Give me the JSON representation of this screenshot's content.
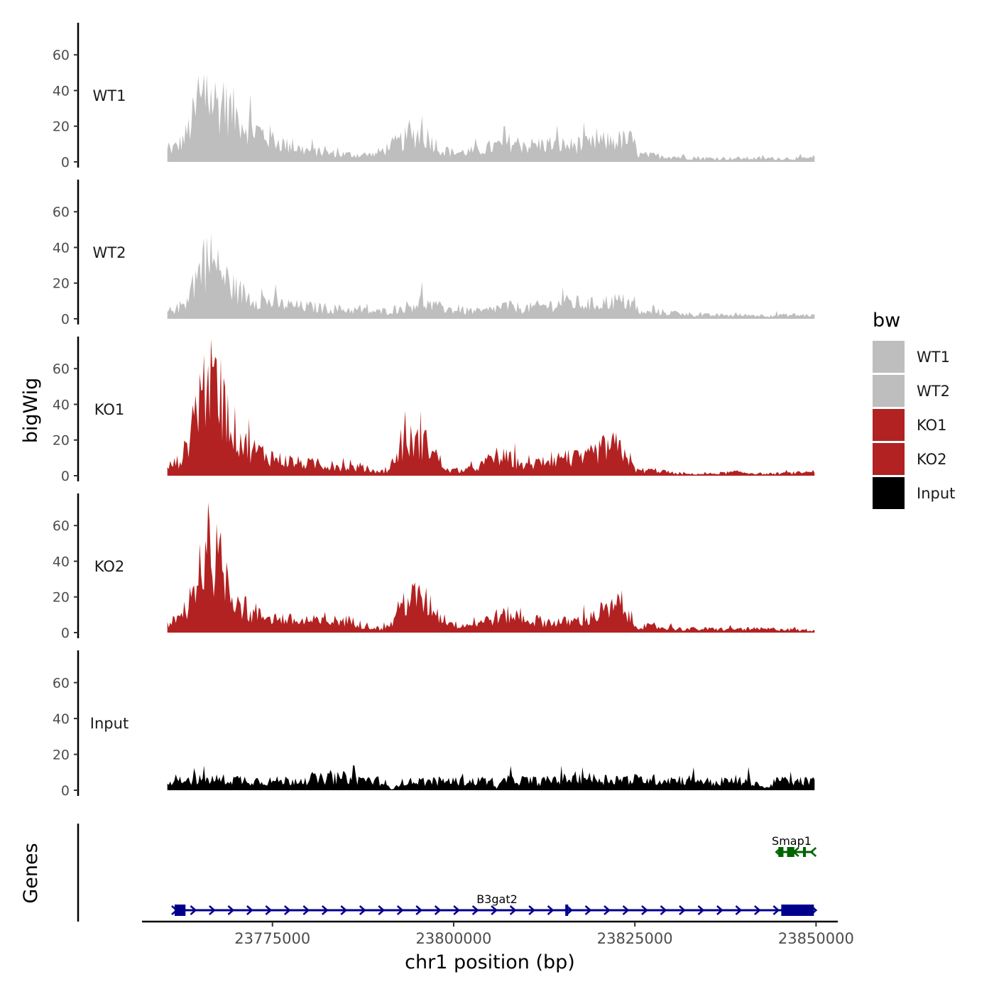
{
  "chart_data": {
    "type": "area",
    "title": "",
    "y_axis_label": "bigWig",
    "gene_axis_label": "Genes",
    "x_axis_label": "chr1 position (bp)",
    "x_range": [
      23757000,
      23853000
    ],
    "x_ticks": [
      23775000,
      23800000,
      23825000,
      23850000
    ],
    "x_tick_labels": [
      "23775000",
      "23800000",
      "23825000",
      "23850000"
    ],
    "data_x_range": [
      23760500,
      23849800
    ],
    "y_range": [
      0,
      78
    ],
    "y_ticks": [
      0,
      20,
      40,
      60
    ],
    "y_tick_labels": [
      "0",
      "20",
      "40",
      "60"
    ],
    "legend": {
      "title": "bw",
      "position": "right",
      "entries": [
        {
          "label": "WT1",
          "color": "#bebebe"
        },
        {
          "label": "WT2",
          "color": "#bebebe"
        },
        {
          "label": "KO1",
          "color": "#b22222"
        },
        {
          "label": "KO2",
          "color": "#b22222"
        },
        {
          "label": "Input",
          "color": "#000000"
        }
      ]
    },
    "series": [
      {
        "name": "WT1",
        "color": "#bebebe",
        "profile": [
          [
            23760500,
            6
          ],
          [
            23762000,
            9
          ],
          [
            23763000,
            14
          ],
          [
            23764000,
            24
          ],
          [
            23765000,
            32
          ],
          [
            23766000,
            36
          ],
          [
            23767000,
            34
          ],
          [
            23768000,
            31
          ],
          [
            23769000,
            30
          ],
          [
            23770000,
            26
          ],
          [
            23771000,
            22
          ],
          [
            23772000,
            19
          ],
          [
            23773000,
            17
          ],
          [
            23775000,
            13
          ],
          [
            23777000,
            9
          ],
          [
            23779000,
            7
          ],
          [
            23782000,
            5
          ],
          [
            23786000,
            4
          ],
          [
            23789000,
            4
          ],
          [
            23790000,
            6
          ],
          [
            23792000,
            10
          ],
          [
            23794000,
            14
          ],
          [
            23795500,
            16
          ],
          [
            23797000,
            12
          ],
          [
            23798500,
            6
          ],
          [
            23800000,
            5
          ],
          [
            23803000,
            6
          ],
          [
            23806000,
            9
          ],
          [
            23808000,
            11
          ],
          [
            23810000,
            9
          ],
          [
            23813000,
            10
          ],
          [
            23816000,
            9
          ],
          [
            23819000,
            10
          ],
          [
            23822000,
            12
          ],
          [
            23824500,
            12
          ],
          [
            23825500,
            4
          ],
          [
            23830000,
            3
          ],
          [
            23835000,
            2
          ],
          [
            23840000,
            2
          ],
          [
            23845000,
            2
          ],
          [
            23849800,
            2
          ]
        ],
        "peaks": [
          [
            23764800,
            48
          ],
          [
            23765600,
            49
          ],
          [
            23768200,
            45
          ],
          [
            23795700,
            26
          ],
          [
            23807000,
            20
          ]
        ]
      },
      {
        "name": "WT2",
        "color": "#bebebe",
        "profile": [
          [
            23760500,
            4
          ],
          [
            23762000,
            6
          ],
          [
            23763000,
            9
          ],
          [
            23764000,
            20
          ],
          [
            23765000,
            27
          ],
          [
            23766000,
            32
          ],
          [
            23767000,
            29
          ],
          [
            23768000,
            25
          ],
          [
            23769000,
            20
          ],
          [
            23770000,
            16
          ],
          [
            23772000,
            12
          ],
          [
            23774000,
            10
          ],
          [
            23776000,
            8
          ],
          [
            23779000,
            7
          ],
          [
            23782000,
            6
          ],
          [
            23786000,
            5
          ],
          [
            23789000,
            4
          ],
          [
            23790000,
            4
          ],
          [
            23793000,
            6
          ],
          [
            23795500,
            10
          ],
          [
            23797000,
            7
          ],
          [
            23800000,
            5
          ],
          [
            23804000,
            4
          ],
          [
            23807000,
            7
          ],
          [
            23810000,
            6
          ],
          [
            23814000,
            8
          ],
          [
            23816000,
            9
          ],
          [
            23819000,
            8
          ],
          [
            23822000,
            10
          ],
          [
            23824500,
            9
          ],
          [
            23825500,
            3
          ],
          [
            23828000,
            4
          ],
          [
            23831000,
            3
          ],
          [
            23835000,
            2
          ],
          [
            23838000,
            2
          ],
          [
            23840000,
            2
          ],
          [
            23845000,
            2
          ],
          [
            23849800,
            2
          ]
        ],
        "peaks": [
          [
            23766500,
            48
          ],
          [
            23765500,
            45
          ],
          [
            23795700,
            21
          ],
          [
            23815000,
            18
          ]
        ]
      },
      {
        "name": "KO1",
        "color": "#b22222",
        "profile": [
          [
            23760500,
            5
          ],
          [
            23762000,
            8
          ],
          [
            23763000,
            14
          ],
          [
            23764000,
            32
          ],
          [
            23765000,
            46
          ],
          [
            23766000,
            52
          ],
          [
            23767000,
            48
          ],
          [
            23768000,
            40
          ],
          [
            23769000,
            32
          ],
          [
            23770000,
            24
          ],
          [
            23771000,
            18
          ],
          [
            23772000,
            15
          ],
          [
            23774000,
            12
          ],
          [
            23776000,
            9
          ],
          [
            23779000,
            7
          ],
          [
            23782000,
            6
          ],
          [
            23785000,
            5
          ],
          [
            23788000,
            4
          ],
          [
            23789500,
            2
          ],
          [
            23791000,
            3
          ],
          [
            23792500,
            14
          ],
          [
            23794000,
            19
          ],
          [
            23796000,
            18
          ],
          [
            23797500,
            12
          ],
          [
            23799000,
            3
          ],
          [
            23801000,
            3
          ],
          [
            23803000,
            4
          ],
          [
            23806000,
            11
          ],
          [
            23808000,
            9
          ],
          [
            23810000,
            5
          ],
          [
            23812000,
            8
          ],
          [
            23815000,
            10
          ],
          [
            23818000,
            9
          ],
          [
            23820000,
            14
          ],
          [
            23822000,
            17
          ],
          [
            23824000,
            12
          ],
          [
            23825000,
            3
          ],
          [
            23828000,
            3
          ],
          [
            23831000,
            1
          ],
          [
            23835000,
            1
          ],
          [
            23839000,
            2
          ],
          [
            23843000,
            1
          ],
          [
            23849800,
            2
          ]
        ],
        "peaks": [
          [
            23766200,
            62
          ],
          [
            23766800,
            61
          ],
          [
            23768500,
            50
          ],
          [
            23821800,
            22
          ]
        ]
      },
      {
        "name": "KO2",
        "color": "#b22222",
        "profile": [
          [
            23760500,
            5
          ],
          [
            23762000,
            7
          ],
          [
            23763500,
            12
          ],
          [
            23764000,
            22
          ],
          [
            23765000,
            35
          ],
          [
            23766000,
            40
          ],
          [
            23767000,
            42
          ],
          [
            23768000,
            38
          ],
          [
            23769000,
            28
          ],
          [
            23770000,
            20
          ],
          [
            23771000,
            14
          ],
          [
            23772000,
            10
          ],
          [
            23774000,
            9
          ],
          [
            23776000,
            8
          ],
          [
            23779000,
            6
          ],
          [
            23782000,
            6
          ],
          [
            23785000,
            7
          ],
          [
            23788000,
            4
          ],
          [
            23790000,
            2
          ],
          [
            23791500,
            5
          ],
          [
            23793000,
            17
          ],
          [
            23795000,
            20
          ],
          [
            23796500,
            16
          ],
          [
            23798500,
            8
          ],
          [
            23800500,
            4
          ],
          [
            23803000,
            5
          ],
          [
            23806000,
            9
          ],
          [
            23808000,
            10
          ],
          [
            23810000,
            7
          ],
          [
            23813000,
            6
          ],
          [
            23816000,
            6
          ],
          [
            23819000,
            8
          ],
          [
            23821000,
            12
          ],
          [
            23823000,
            14
          ],
          [
            23825000,
            4
          ],
          [
            23828000,
            3
          ],
          [
            23832000,
            2
          ],
          [
            23836000,
            2
          ],
          [
            23840000,
            2
          ],
          [
            23845000,
            2
          ],
          [
            23849800,
            1
          ]
        ],
        "peaks": [
          [
            23766100,
            73
          ],
          [
            23765000,
            50
          ],
          [
            23767700,
            52
          ],
          [
            23794400,
            26
          ]
        ]
      },
      {
        "name": "Input",
        "color": "#000000",
        "profile": [
          [
            23760500,
            6
          ],
          [
            23765000,
            6
          ],
          [
            23770000,
            6
          ],
          [
            23775000,
            5
          ],
          [
            23780000,
            6
          ],
          [
            23785000,
            7
          ],
          [
            23790000,
            5
          ],
          [
            23791500,
            0
          ],
          [
            23792000,
            4
          ],
          [
            23795000,
            5
          ],
          [
            23800000,
            5
          ],
          [
            23805500,
            5
          ],
          [
            23806000,
            1
          ],
          [
            23807000,
            6
          ],
          [
            23812000,
            5
          ],
          [
            23817000,
            7
          ],
          [
            23822000,
            6
          ],
          [
            23827000,
            6
          ],
          [
            23833000,
            6
          ],
          [
            23836500,
            4
          ],
          [
            23837000,
            5
          ],
          [
            23841500,
            5
          ],
          [
            23843000,
            1
          ],
          [
            23844500,
            5
          ],
          [
            23849800,
            5
          ]
        ],
        "peaks": [
          [
            23786200,
            14
          ],
          [
            23817800,
            13
          ],
          [
            23840600,
            13
          ]
        ]
      }
    ],
    "genes": [
      {
        "name": "B3gat2",
        "label": "B3gat2",
        "color": "#00008b",
        "strand": "+",
        "start": 23761500,
        "end": 23849700,
        "exons": [
          [
            23761500,
            23763000
          ],
          [
            23815400,
            23815800
          ],
          [
            23845200,
            23849700
          ]
        ]
      },
      {
        "name": "Smap1",
        "label": "Smap1",
        "color": "#006400",
        "strand": "-",
        "start": 23844800,
        "end": 23849600,
        "exons": [
          [
            23844800,
            23845500
          ],
          [
            23846000,
            23847000
          ],
          [
            23848200,
            23848500
          ]
        ]
      }
    ]
  }
}
